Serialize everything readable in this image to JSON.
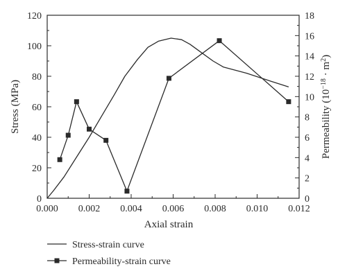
{
  "chart_data": {
    "type": "line",
    "xlabel": "Axial strain",
    "ylabel": "Stress (MPa)",
    "y2label_parts": {
      "prefix": "Permeability (10",
      "exp1": "−18",
      "mid": " · m",
      "exp2": "2",
      "suffix": ")"
    },
    "xlim": [
      0.0,
      0.012
    ],
    "ylim": [
      0,
      120
    ],
    "y2lim": [
      0,
      18
    ],
    "x_ticks": [
      "0.000",
      "0.002",
      "0.004",
      "0.006",
      "0.008",
      "0.010",
      "0.012"
    ],
    "y_ticks": [
      "0",
      "20",
      "40",
      "60",
      "80",
      "100",
      "120"
    ],
    "y2_ticks": [
      "0",
      "2",
      "4",
      "6",
      "8",
      "10",
      "12",
      "14",
      "16",
      "18"
    ],
    "grid": false,
    "legend_position": "bottom-left",
    "series": [
      {
        "name": "Stress-strain curve",
        "axis": "left",
        "marker": "none",
        "color": "#2a2a2a",
        "points": [
          [
            0.0,
            0
          ],
          [
            0.0003,
            5
          ],
          [
            0.0008,
            14
          ],
          [
            0.0014,
            27
          ],
          [
            0.002,
            40
          ],
          [
            0.0026,
            54
          ],
          [
            0.0032,
            68
          ],
          [
            0.0037,
            80
          ],
          [
            0.0043,
            91
          ],
          [
            0.0048,
            99
          ],
          [
            0.0053,
            103
          ],
          [
            0.0059,
            105
          ],
          [
            0.0064,
            104
          ],
          [
            0.0068,
            101
          ],
          [
            0.0073,
            96
          ],
          [
            0.0079,
            90
          ],
          [
            0.0084,
            86
          ],
          [
            0.0095,
            82
          ],
          [
            0.0106,
            77
          ],
          [
            0.0115,
            73
          ]
        ]
      },
      {
        "name": "Permeability-strain curve",
        "axis": "right",
        "marker": "square",
        "color": "#2a2a2a",
        "points": [
          [
            0.0006,
            3.8
          ],
          [
            0.001,
            6.2
          ],
          [
            0.0014,
            9.5
          ],
          [
            0.002,
            6.8
          ],
          [
            0.0028,
            5.7
          ],
          [
            0.0038,
            0.7
          ],
          [
            0.0058,
            11.8
          ],
          [
            0.0082,
            15.5
          ],
          [
            0.0115,
            9.5
          ]
        ]
      }
    ]
  }
}
